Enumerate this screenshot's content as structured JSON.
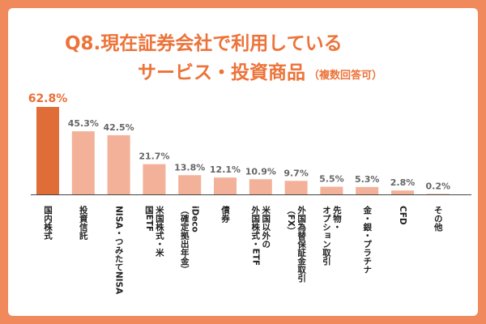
{
  "title": {
    "line1": "Q8.現在証券会社で利用している",
    "line2": "サービス・投資商品",
    "note": "（複数回答可）"
  },
  "colors": {
    "background": "#f08a5d",
    "highlight_bar": "#e06d37",
    "bar": "#f2b198",
    "title": "#ec7339"
  },
  "chart_data": {
    "type": "bar",
    "categories": [
      "国内株式",
      "投資信託",
      "NISA・つみたてNISA",
      "米国株式・米国ETF",
      "iDeco（確定拠出年金）",
      "債券",
      "米国以外の外国株式・ETF",
      "外国為替保証金取引（FX）",
      "先物・オプション取引",
      "金・銀・プラチナ",
      "CFD",
      "その他"
    ],
    "category_lines": [
      [
        "国内株式"
      ],
      [
        "投資信託"
      ],
      [
        "NISA・つみたてNISA"
      ],
      [
        "米国株式・米",
        "国ETF"
      ],
      [
        "iDeco",
        "（確定拠出年金）"
      ],
      [
        "債券"
      ],
      [
        "米国以外の",
        "外国株式・ETF"
      ],
      [
        "外国為替保証金取引",
        "（FX）"
      ],
      [
        "先物・",
        "オプション取引"
      ],
      [
        "金・銀・プラチナ"
      ],
      [
        "CFD"
      ],
      [
        "その他"
      ]
    ],
    "values": [
      62.8,
      45.3,
      42.5,
      21.7,
      13.8,
      12.1,
      10.9,
      9.7,
      5.5,
      5.3,
      2.8,
      0.2
    ],
    "value_labels": [
      "62.8%",
      "45.3%",
      "42.5%",
      "21.7%",
      "13.8%",
      "12.1%",
      "10.9%",
      "9.7%",
      "5.5%",
      "5.3%",
      "2.8%",
      "0.2%"
    ],
    "unit": "%",
    "ylim": [
      0,
      62.8
    ],
    "grid": false,
    "legend": "none"
  }
}
